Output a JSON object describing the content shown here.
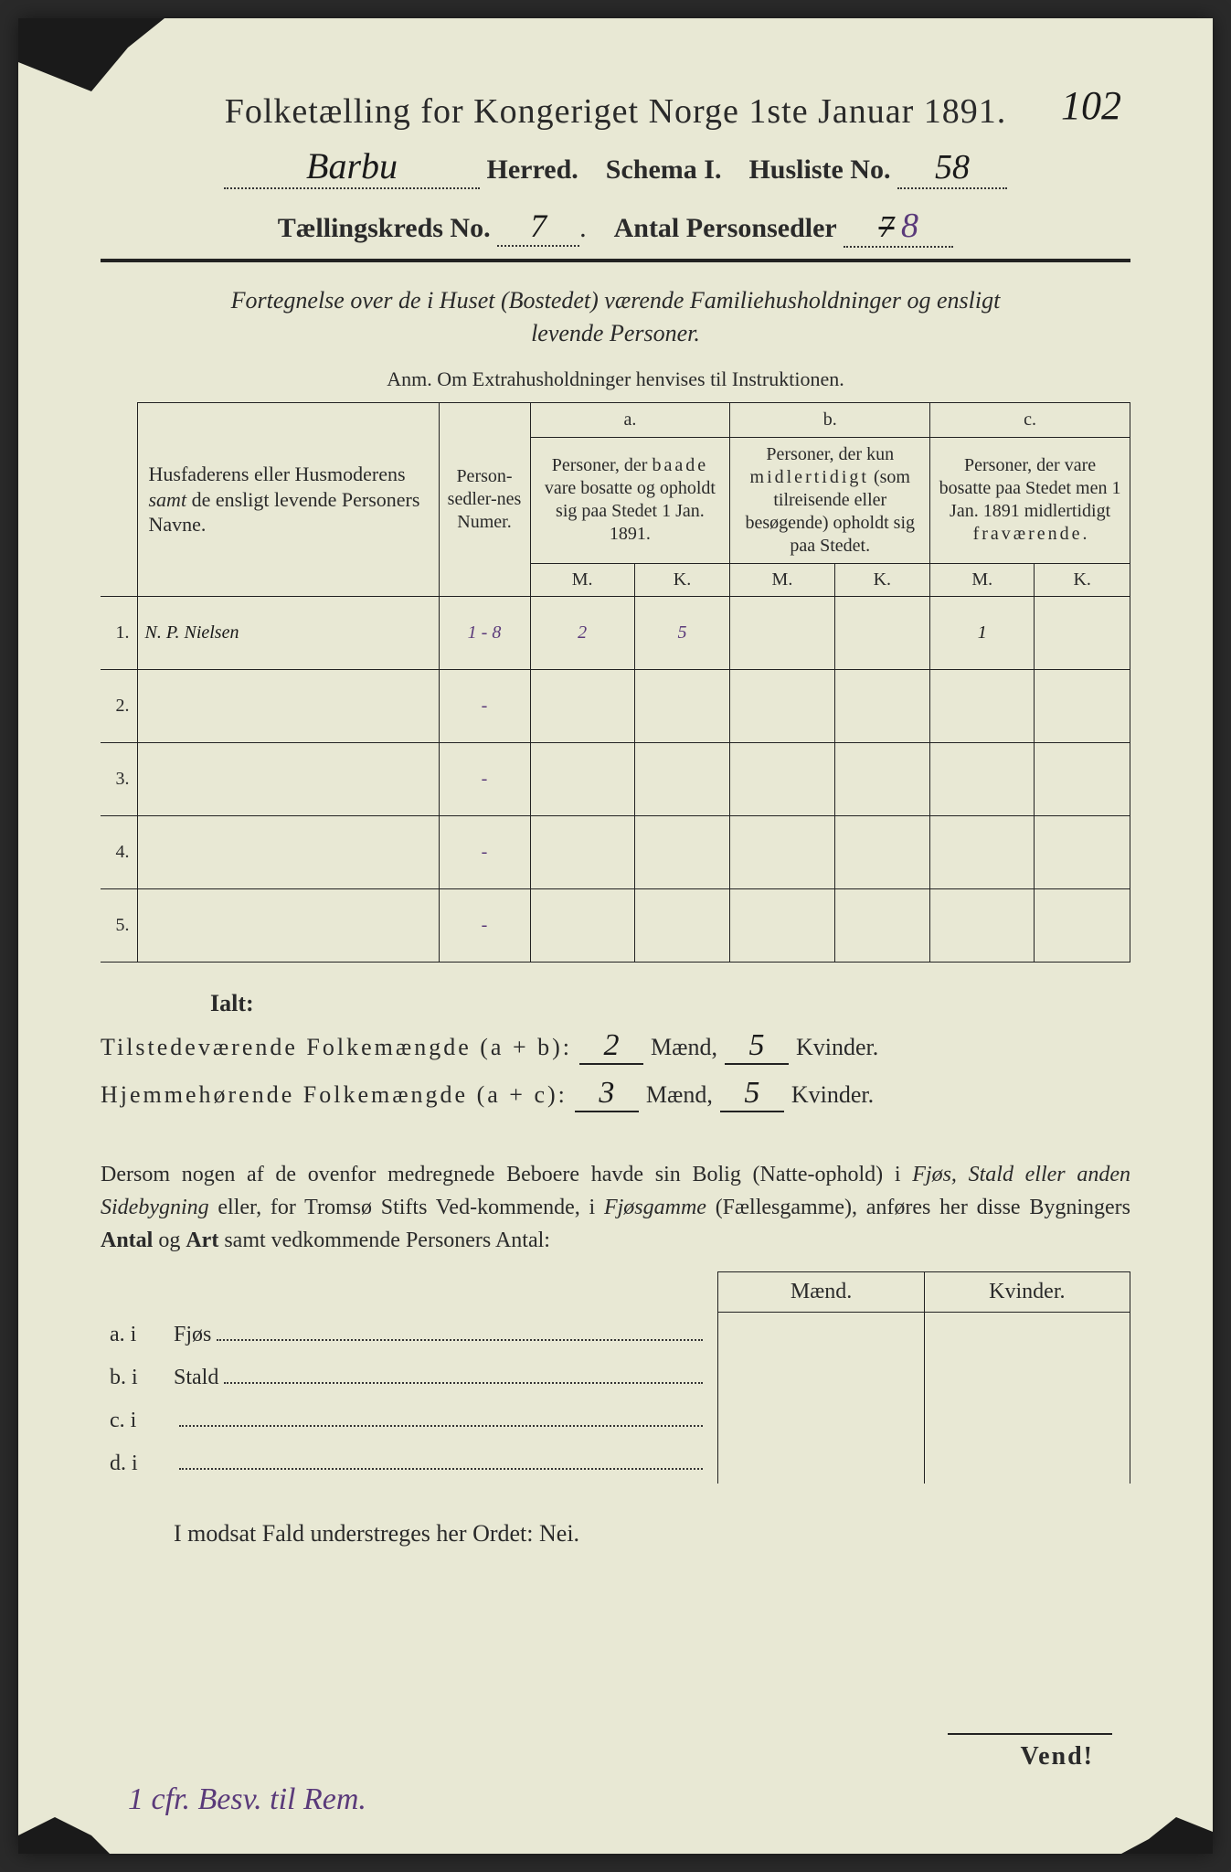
{
  "page": {
    "background": "#e8e8d4",
    "ink": "#2a2a2a",
    "purple_ink": "#5a3a7a"
  },
  "header": {
    "title": "Folketælling for Kongeriget Norge 1ste Januar 1891.",
    "top_right_number": "102",
    "herred_value": "Barbu",
    "herred_label": "Herred.",
    "schema_label": "Schema I.",
    "husliste_label": "Husliste No.",
    "husliste_value": "58",
    "kreds_label": "Tællingskreds No.",
    "kreds_value": "7",
    "antal_label": "Antal Personsedler",
    "antal_struck": "7",
    "antal_value": "8"
  },
  "subtitle": {
    "line1": "Fortegnelse over de i Huset (Bostedet) værende Familiehusholdninger og ensligt",
    "line2": "levende Personer.",
    "anm": "Anm. Om Extrahusholdninger henvises til Instruktionen."
  },
  "table": {
    "col_name": "Husfaderens eller Husmoderens samt de ensligt levende Personers Navne.",
    "col_numer": "Person-sedler-nes Numer.",
    "col_a_head": "a.",
    "col_a": "Personer, der baade vare bosatte og opholdt sig paa Stedet 1 Jan. 1891.",
    "col_b_head": "b.",
    "col_b": "Personer, der kun midlertidigt (som tilreisende eller besøgende) opholdt sig paa Stedet.",
    "col_c_head": "c.",
    "col_c": "Personer, der vare bosatte paa Stedet men 1 Jan. 1891 midlertidigt fraværende.",
    "mk_m": "M.",
    "mk_k": "K.",
    "rows": [
      {
        "n": "1.",
        "name": "N. P. Nielsen",
        "numer": "1 - 8",
        "a_m": "2",
        "a_k": "5",
        "b_m": "",
        "b_k": "",
        "c_m": "1",
        "c_k": ""
      },
      {
        "n": "2.",
        "name": "",
        "numer": "-",
        "a_m": "",
        "a_k": "",
        "b_m": "",
        "b_k": "",
        "c_m": "",
        "c_k": ""
      },
      {
        "n": "3.",
        "name": "",
        "numer": "-",
        "a_m": "",
        "a_k": "",
        "b_m": "",
        "b_k": "",
        "c_m": "",
        "c_k": ""
      },
      {
        "n": "4.",
        "name": "",
        "numer": "-",
        "a_m": "",
        "a_k": "",
        "b_m": "",
        "b_k": "",
        "c_m": "",
        "c_k": ""
      },
      {
        "n": "5.",
        "name": "",
        "numer": "-",
        "a_m": "",
        "a_k": "",
        "b_m": "",
        "b_k": "",
        "c_m": "",
        "c_k": ""
      }
    ]
  },
  "ialt": {
    "heading": "Ialt:",
    "line1_label": "Tilstedeværende Folkemængde (a + b):",
    "line1_m": "2",
    "line1_k": "5",
    "line2_label": "Hjemmehørende Folkemængde (a + c):",
    "line2_m": "3",
    "line2_k": "5",
    "maend": "Mænd,",
    "kvinder": "Kvinder."
  },
  "para": "Dersom nogen af de ovenfor medregnede Beboere havde sin Bolig (Natte-ophold) i Fjøs, Stald eller anden Sidebygning eller, for Tromsø Stifts Ved-kommende, i Fjøsgamme (Fællesgamme), anføres her disse Bygningers Antal og Art samt vedkommende Personers Antal:",
  "sidebygning": {
    "head_m": "Mænd.",
    "head_k": "Kvinder.",
    "rows": [
      {
        "key": "a.  i",
        "label": "Fjøs"
      },
      {
        "key": "b.  i",
        "label": "Stald"
      },
      {
        "key": "c.  i",
        "label": ""
      },
      {
        "key": "d.  i",
        "label": ""
      }
    ]
  },
  "nei_line": "I modsat Fald understreges her Ordet: Nei.",
  "vend": "Vend!",
  "bottom_handwritten": "1 cfr. Besv. til Rem."
}
